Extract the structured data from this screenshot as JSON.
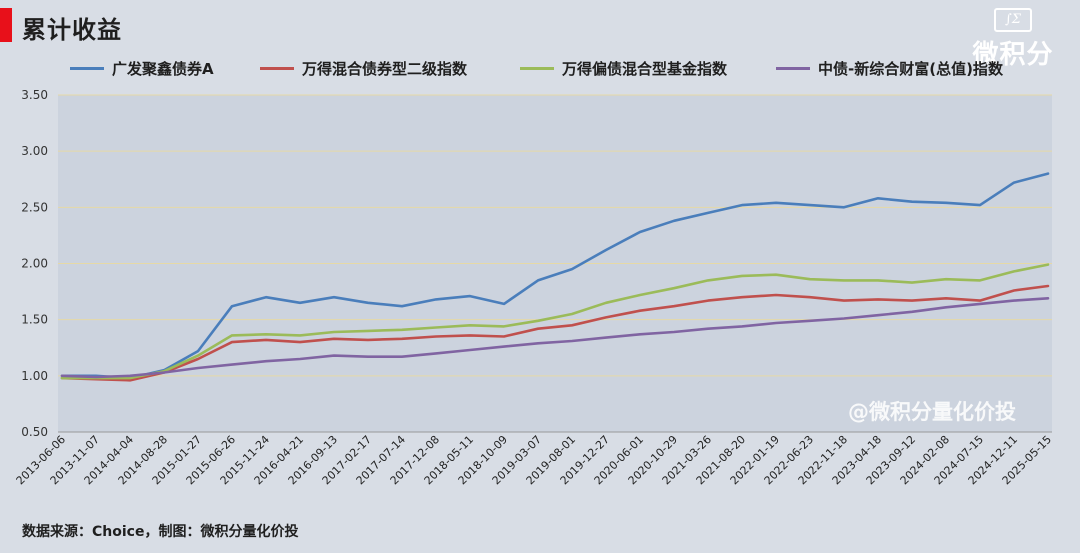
{
  "header": {
    "title": "累计收益"
  },
  "logo": {
    "mark": "∫Σ",
    "text": "微积分"
  },
  "watermark": "@微积分量化价投",
  "source": "数据来源：Choice，制图：微积分量化价投",
  "colors": {
    "accent": "#e8101a"
  },
  "chart_data": {
    "type": "line",
    "ylim": [
      0.5,
      3.5
    ],
    "yticks": [
      "0.50",
      "1.00",
      "1.50",
      "2.00",
      "2.50",
      "3.00",
      "3.50"
    ],
    "x": [
      "2013-06-06",
      "2013-11-07",
      "2014-04-04",
      "2014-08-28",
      "2015-01-27",
      "2015-06-26",
      "2015-11-24",
      "2016-04-21",
      "2016-09-13",
      "2017-02-17",
      "2017-07-14",
      "2017-12-08",
      "2018-05-11",
      "2018-10-09",
      "2019-03-07",
      "2019-08-01",
      "2019-12-27",
      "2020-06-01",
      "2020-10-29",
      "2021-03-26",
      "2021-08-20",
      "2022-01-19",
      "2022-06-23",
      "2022-11-18",
      "2023-04-18",
      "2023-09-12",
      "2024-02-08",
      "2024-07-15",
      "2024-12-11",
      "2025-05-15"
    ],
    "series": [
      {
        "name": "广发聚鑫债券A",
        "color": "#4a7ebb",
        "values": [
          1.0,
          1.0,
          0.98,
          1.05,
          1.22,
          1.62,
          1.7,
          1.65,
          1.7,
          1.65,
          1.62,
          1.68,
          1.71,
          1.64,
          1.85,
          1.95,
          2.12,
          2.28,
          2.38,
          2.45,
          2.52,
          2.54,
          2.52,
          2.5,
          2.58,
          2.55,
          2.54,
          2.52,
          2.72,
          2.8
        ]
      },
      {
        "name": "万得混合债券型二级指数",
        "color": "#c0504d",
        "values": [
          0.98,
          0.97,
          0.96,
          1.03,
          1.15,
          1.3,
          1.32,
          1.3,
          1.33,
          1.32,
          1.33,
          1.35,
          1.36,
          1.35,
          1.42,
          1.45,
          1.52,
          1.58,
          1.62,
          1.67,
          1.7,
          1.72,
          1.7,
          1.67,
          1.68,
          1.67,
          1.69,
          1.67,
          1.76,
          1.8
        ]
      },
      {
        "name": "万得偏债混合型基金指数",
        "color": "#9bbb59",
        "values": [
          0.98,
          0.98,
          0.98,
          1.04,
          1.18,
          1.36,
          1.37,
          1.36,
          1.39,
          1.4,
          1.41,
          1.43,
          1.45,
          1.44,
          1.49,
          1.55,
          1.65,
          1.72,
          1.78,
          1.85,
          1.89,
          1.9,
          1.86,
          1.85,
          1.85,
          1.83,
          1.86,
          1.85,
          1.93,
          1.99
        ]
      },
      {
        "name": "中债-新综合财富(总值)指数",
        "color": "#8064a2",
        "values": [
          1.0,
          0.99,
          1.0,
          1.03,
          1.07,
          1.1,
          1.13,
          1.15,
          1.18,
          1.17,
          1.17,
          1.2,
          1.23,
          1.26,
          1.29,
          1.31,
          1.34,
          1.37,
          1.39,
          1.42,
          1.44,
          1.47,
          1.49,
          1.51,
          1.54,
          1.57,
          1.61,
          1.64,
          1.67,
          1.69
        ]
      }
    ]
  }
}
